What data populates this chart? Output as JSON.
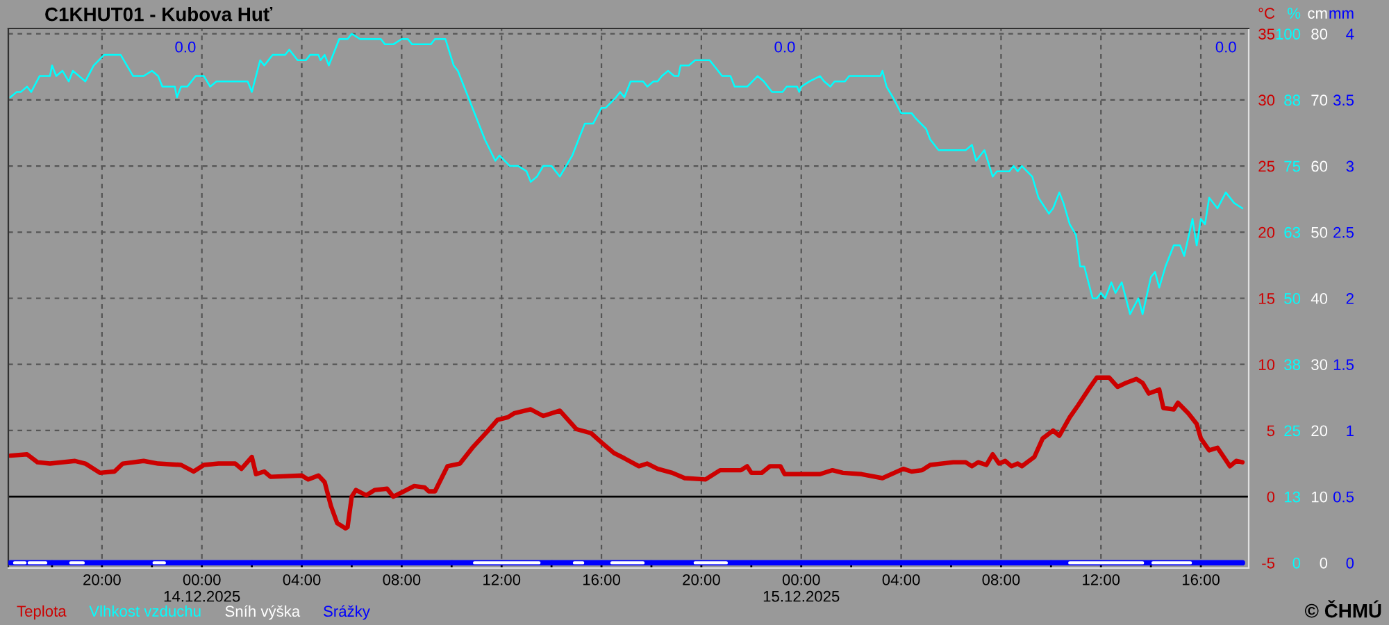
{
  "chart_data": [
    {
      "type": "line",
      "title": "C1KHUT01 - Kubova Huť",
      "ylabel": "°C",
      "y2label": "%",
      "y3label": "cm",
      "xlim": [
        "2025-12-13T16:15",
        "2025-12-15T17:55"
      ],
      "xticks": [
        {
          "value": "2025-12-13T18:00",
          "label": null
        },
        {
          "value": "2025-12-13T20:00",
          "label": "20:00"
        },
        {
          "value": "2025-12-13T22:00",
          "label": null
        },
        {
          "value": "2025-12-14T00:00",
          "label": "00:00\n14.12.2025"
        },
        {
          "value": "2025-12-14T02:00",
          "label": null
        },
        {
          "value": "2025-12-14T04:00",
          "label": "04:00"
        },
        {
          "value": "2025-12-14T06:00",
          "label": null
        },
        {
          "value": "2025-12-14T08:00",
          "label": "08:00"
        },
        {
          "value": "2025-12-14T10:00",
          "label": null
        },
        {
          "value": "2025-12-14T12:00",
          "label": "12:00"
        },
        {
          "value": "2025-12-14T14:00",
          "label": null
        },
        {
          "value": "2025-12-14T16:00",
          "label": "16:00"
        },
        {
          "value": "2025-12-14T18:00",
          "label": null
        },
        {
          "value": "2025-12-14T20:00",
          "label": "20:00"
        },
        {
          "value": "2025-12-14T22:00",
          "label": null
        },
        {
          "value": "2025-12-15T00:00",
          "label": "00:00\n15.12.2025"
        },
        {
          "value": "2025-12-15T02:00",
          "label": null
        },
        {
          "value": "2025-12-15T04:00",
          "label": "04:00"
        },
        {
          "value": "2025-12-15T06:00",
          "label": null
        },
        {
          "value": "2025-12-15T08:00",
          "label": "08:00"
        },
        {
          "value": "2025-12-15T10:00",
          "label": null
        },
        {
          "value": "2025-12-15T12:00",
          "label": "12:00"
        },
        {
          "value": "2025-12-15T14:00",
          "label": null
        },
        {
          "value": "2025-12-15T16:00",
          "label": "16:00"
        }
      ],
      "ylim": [
        -5.4,
        35.4
      ],
      "yticks": [
        -5,
        0,
        5,
        10,
        15,
        20,
        25,
        30,
        35
      ],
      "y2lim": [
        -1,
        101
      ],
      "y2ticks": [
        0,
        {
          "value": 12.5,
          "label": "13"
        },
        25,
        {
          "value": 37.5,
          "label": "38"
        },
        50,
        {
          "value": 62.5,
          "label": "63"
        },
        75,
        {
          "value": 87.5,
          "label": "88"
        },
        100
      ],
      "y3lim": [
        -0.8,
        80.8
      ],
      "y3ticks": [
        0,
        10,
        20,
        30,
        40,
        50,
        60,
        70,
        80
      ],
      "grid": true,
      "legend": "bottom left",
      "ref_lines": [
        {
          "axis": "y",
          "value": 0,
          "color": "#000000",
          "line_style": "solid"
        }
      ],
      "series": [
        {
          "name": "Teplota",
          "axis": "y",
          "color": "#cc0000",
          "x": [
            "2025-12-13T16:20",
            "2025-12-13T17:00",
            "2025-12-13T17:25",
            "2025-12-13T17:55",
            "2025-12-13T18:55",
            "2025-12-13T19:20",
            "2025-12-13T19:55",
            "2025-12-13T20:30",
            "2025-12-13T20:50",
            "2025-12-13T21:40",
            "2025-12-13T22:15",
            "2025-12-13T23:10",
            "2025-12-13T23:40",
            "2025-12-14T00:05",
            "2025-12-14T00:40",
            "2025-12-14T01:20",
            "2025-12-14T01:35",
            "2025-12-14T02:00",
            "2025-12-14T02:10",
            "2025-12-14T02:30",
            "2025-12-14T02:45",
            "2025-12-14T04:00",
            "2025-12-14T04:15",
            "2025-12-14T04:40",
            "2025-12-14T04:55",
            "2025-12-14T05:10",
            "2025-12-14T05:25",
            "2025-12-14T05:45",
            "2025-12-14T05:50",
            "2025-12-14T06:00",
            "2025-12-14T06:10",
            "2025-12-14T06:35",
            "2025-12-14T06:55",
            "2025-12-14T07:25",
            "2025-12-14T07:40",
            "2025-12-14T08:05",
            "2025-12-14T08:30",
            "2025-12-14T08:55",
            "2025-12-14T09:05",
            "2025-12-14T09:20",
            "2025-12-14T09:50",
            "2025-12-14T10:20",
            "2025-12-14T10:50",
            "2025-12-14T11:25",
            "2025-12-14T11:50",
            "2025-12-14T12:15",
            "2025-12-14T12:30",
            "2025-12-14T13:10",
            "2025-12-14T13:40",
            "2025-12-14T14:20",
            "2025-12-14T15:00",
            "2025-12-14T15:35",
            "2025-12-14T16:00",
            "2025-12-14T16:30",
            "2025-12-14T16:55",
            "2025-12-14T17:30",
            "2025-12-14T17:50",
            "2025-12-14T18:15",
            "2025-12-14T18:50",
            "2025-12-14T19:20",
            "2025-12-14T20:10",
            "2025-12-14T20:45",
            "2025-12-14T21:35",
            "2025-12-14T21:50",
            "2025-12-14T22:00",
            "2025-12-14T22:25",
            "2025-12-14T22:45",
            "2025-12-14T23:10",
            "2025-12-14T23:20",
            "2025-12-15T00:05",
            "2025-12-15T00:45",
            "2025-12-15T01:15",
            "2025-12-15T01:40",
            "2025-12-15T02:25",
            "2025-12-15T03:15",
            "2025-12-15T04:05",
            "2025-12-15T04:25",
            "2025-12-15T04:50",
            "2025-12-15T05:10",
            "2025-12-15T06:05",
            "2025-12-15T06:35",
            "2025-12-15T06:50",
            "2025-12-15T07:05",
            "2025-12-15T07:25",
            "2025-12-15T07:40",
            "2025-12-15T07:55",
            "2025-12-15T08:10",
            "2025-12-15T08:25",
            "2025-12-15T08:40",
            "2025-12-15T08:50",
            "2025-12-15T09:20",
            "2025-12-15T09:40",
            "2025-12-15T10:05",
            "2025-12-15T10:20",
            "2025-12-15T10:45",
            "2025-12-15T11:05",
            "2025-12-15T11:30",
            "2025-12-15T11:50",
            "2025-12-15T12:20",
            "2025-12-15T12:40",
            "2025-12-15T13:00",
            "2025-12-15T13:25",
            "2025-12-15T13:40",
            "2025-12-15T13:55",
            "2025-12-15T14:20",
            "2025-12-15T14:30",
            "2025-12-15T14:55",
            "2025-12-15T15:05",
            "2025-12-15T15:30",
            "2025-12-15T15:50",
            "2025-12-15T16:00",
            "2025-12-15T16:20",
            "2025-12-15T16:40",
            "2025-12-15T16:55",
            "2025-12-15T17:10",
            "2025-12-15T17:25",
            "2025-12-15T17:40"
          ],
          "values": [
            3.1,
            3.2,
            2.6,
            2.5,
            2.7,
            2.5,
            1.8,
            1.9,
            2.5,
            2.7,
            2.5,
            2.4,
            1.9,
            2.4,
            2.5,
            2.5,
            2.1,
            3.0,
            1.7,
            1.9,
            1.5,
            1.6,
            1.3,
            1.6,
            1.1,
            -0.7,
            -2.0,
            -2.4,
            -2.3,
            0.0,
            0.5,
            0.1,
            0.5,
            0.6,
            0.0,
            0.4,
            0.8,
            0.7,
            0.4,
            0.4,
            2.3,
            2.5,
            3.7,
            4.9,
            5.8,
            6.0,
            6.3,
            6.6,
            6.1,
            6.5,
            5.1,
            4.8,
            4.1,
            3.3,
            2.9,
            2.3,
            2.5,
            2.1,
            1.8,
            1.4,
            1.3,
            2.0,
            2.0,
            2.3,
            1.8,
            1.8,
            2.3,
            2.3,
            1.7,
            1.7,
            1.7,
            2.0,
            1.8,
            1.7,
            1.4,
            2.1,
            1.9,
            2.0,
            2.4,
            2.6,
            2.6,
            2.3,
            2.6,
            2.4,
            3.2,
            2.5,
            2.7,
            2.3,
            2.5,
            2.3,
            3.0,
            4.4,
            5.0,
            4.6,
            6.0,
            6.9,
            8.1,
            9.0,
            9.0,
            8.3,
            8.6,
            8.9,
            8.6,
            7.8,
            8.1,
            6.7,
            6.6,
            7.1,
            6.3,
            5.5,
            4.4,
            3.5,
            3.7,
            3.0,
            2.3,
            2.7,
            2.6
          ]
        },
        {
          "name": "Vlhkost vzduchu",
          "axis": "y2",
          "color": "#00ffff",
          "x": [
            "2025-12-13T16:20",
            "2025-12-13T16:35",
            "2025-12-13T16:45",
            "2025-12-13T17:00",
            "2025-12-13T17:10",
            "2025-12-13T17:30",
            "2025-12-13T17:55",
            "2025-12-13T18:00",
            "2025-12-13T18:10",
            "2025-12-13T18:25",
            "2025-12-13T18:40",
            "2025-12-13T18:50",
            "2025-12-13T19:05",
            "2025-12-13T19:20",
            "2025-12-13T19:40",
            "2025-12-13T20:05",
            "2025-12-13T20:45",
            "2025-12-13T21:15",
            "2025-12-13T21:30",
            "2025-12-13T21:40",
            "2025-12-13T22:00",
            "2025-12-13T22:15",
            "2025-12-13T22:25",
            "2025-12-13T22:55",
            "2025-12-13T23:00",
            "2025-12-13T23:10",
            "2025-12-13T23:25",
            "2025-12-13T23:45",
            "2025-12-14T00:05",
            "2025-12-14T00:20",
            "2025-12-14T00:35",
            "2025-12-14T01:50",
            "2025-12-14T02:00",
            "2025-12-14T02:20",
            "2025-12-14T02:30",
            "2025-12-14T02:50",
            "2025-12-14T03:20",
            "2025-12-14T03:30",
            "2025-12-14T03:50",
            "2025-12-14T04:10",
            "2025-12-14T04:20",
            "2025-12-14T04:40",
            "2025-12-14T04:45",
            "2025-12-14T04:55",
            "2025-12-14T05:05",
            "2025-12-14T05:30",
            "2025-12-14T05:50",
            "2025-12-14T06:00",
            "2025-12-14T06:20",
            "2025-12-14T07:10",
            "2025-12-14T07:20",
            "2025-12-14T07:40",
            "2025-12-14T08:00",
            "2025-12-14T08:15",
            "2025-12-14T08:25",
            "2025-12-14T09:10",
            "2025-12-14T09:20",
            "2025-12-14T09:45",
            "2025-12-14T10:05",
            "2025-12-14T10:15",
            "2025-12-14T10:50",
            "2025-12-14T11:20",
            "2025-12-14T11:45",
            "2025-12-14T11:55",
            "2025-12-14T12:20",
            "2025-12-14T12:40",
            "2025-12-14T13:00",
            "2025-12-14T13:10",
            "2025-12-14T13:25",
            "2025-12-14T13:40",
            "2025-12-14T14:00",
            "2025-12-14T14:10",
            "2025-12-14T14:20",
            "2025-12-14T14:50",
            "2025-12-14T15:20",
            "2025-12-14T15:40",
            "2025-12-14T16:00",
            "2025-12-14T16:10",
            "2025-12-14T16:35",
            "2025-12-14T16:45",
            "2025-12-14T16:55",
            "2025-12-14T17:10",
            "2025-12-14T17:40",
            "2025-12-14T17:50",
            "2025-12-14T18:05",
            "2025-12-14T18:15",
            "2025-12-14T18:25",
            "2025-12-14T18:40",
            "2025-12-14T18:55",
            "2025-12-14T19:05",
            "2025-12-14T19:10",
            "2025-12-14T19:30",
            "2025-12-14T19:45",
            "2025-12-14T20:20",
            "2025-12-14T20:50",
            "2025-12-14T21:10",
            "2025-12-14T21:20",
            "2025-12-14T21:50",
            "2025-12-14T22:15",
            "2025-12-14T22:30",
            "2025-12-14T22:50",
            "2025-12-14T23:15",
            "2025-12-14T23:25",
            "2025-12-14T23:50",
            "2025-12-14T23:55",
            "2025-12-15T00:00",
            "2025-12-15T00:20",
            "2025-12-15T00:45",
            "2025-12-15T00:55",
            "2025-12-15T01:10",
            "2025-12-15T01:20",
            "2025-12-15T01:45",
            "2025-12-15T01:55",
            "2025-12-15T03:10",
            "2025-12-15T03:15",
            "2025-12-15T03:25",
            "2025-12-15T03:40",
            "2025-12-15T04:00",
            "2025-12-15T04:25",
            "2025-12-15T04:35",
            "2025-12-15T05:00",
            "2025-12-15T05:10",
            "2025-12-15T05:30",
            "2025-12-15T06:35",
            "2025-12-15T06:50",
            "2025-12-15T07:00",
            "2025-12-15T07:20",
            "2025-12-15T07:40",
            "2025-12-15T07:50",
            "2025-12-15T08:20",
            "2025-12-15T08:30",
            "2025-12-15T08:40",
            "2025-12-15T08:50",
            "2025-12-15T09:15",
            "2025-12-15T09:30",
            "2025-12-15T09:55",
            "2025-12-15T10:05",
            "2025-12-15T10:20",
            "2025-12-15T10:30",
            "2025-12-15T10:45",
            "2025-12-15T11:00",
            "2025-12-15T11:10",
            "2025-12-15T11:20",
            "2025-12-15T11:40",
            "2025-12-15T11:50",
            "2025-12-15T12:00",
            "2025-12-15T12:10",
            "2025-12-15T12:25",
            "2025-12-15T12:35",
            "2025-12-15T12:50",
            "2025-12-15T13:10",
            "2025-12-15T13:30",
            "2025-12-15T13:40",
            "2025-12-15T14:00",
            "2025-12-15T14:10",
            "2025-12-15T14:20",
            "2025-12-15T14:35",
            "2025-12-15T14:55",
            "2025-12-15T15:10",
            "2025-12-15T15:20",
            "2025-12-15T15:40",
            "2025-12-15T15:50",
            "2025-12-15T16:00",
            "2025-12-15T16:10",
            "2025-12-15T16:20",
            "2025-12-15T16:40",
            "2025-12-15T17:00",
            "2025-12-15T17:20",
            "2025-12-15T17:40"
          ],
          "values": [
            88,
            89,
            89,
            90,
            89,
            92,
            92,
            94,
            92,
            93,
            91,
            93,
            92,
            91,
            94,
            96,
            96,
            92,
            92,
            92,
            93,
            92,
            90,
            90,
            88,
            90,
            90,
            92,
            92,
            90,
            91,
            91,
            89,
            95,
            94,
            96,
            96,
            97,
            95,
            95,
            96,
            96,
            95,
            96,
            94,
            99,
            99,
            100,
            99,
            99,
            98,
            98,
            99,
            99,
            98,
            98,
            99,
            99,
            94,
            93,
            86,
            80,
            76,
            77,
            75,
            75,
            74,
            72,
            73,
            75,
            75,
            74,
            73,
            77,
            83,
            83,
            86,
            86,
            88,
            89,
            88,
            91,
            91,
            90,
            91,
            91,
            92,
            93,
            92,
            92,
            94,
            94,
            95,
            95,
            92,
            92,
            90,
            90,
            92,
            91,
            89,
            89,
            90,
            90,
            89,
            90,
            91,
            92,
            91,
            90,
            91,
            91,
            92,
            92,
            93,
            90,
            88,
            85,
            85,
            84,
            82,
            80,
            78,
            78,
            79,
            76,
            78,
            73,
            74,
            74,
            75,
            74,
            75,
            73,
            69,
            66,
            67,
            70,
            68,
            64,
            62,
            56,
            56,
            50,
            50,
            51,
            50,
            53,
            51,
            53,
            47,
            50,
            47,
            54,
            55,
            52,
            56,
            60,
            60,
            58,
            65,
            60,
            65,
            64,
            69,
            67,
            70,
            68,
            67
          ]
        },
        {
          "name": "Sníh výška",
          "axis": "y3",
          "color": "#ffffff",
          "x": [
            "2025-12-13T16:30",
            "2025-12-13T16:55",
            "2025-12-13T17:00",
            "2025-12-13T17:05",
            "2025-12-13T17:45",
            "2025-12-13T18:15",
            "2025-12-13T18:45",
            "2025-12-13T19:15",
            "2025-12-13T20:00",
            "2025-12-13T22:05",
            "2025-12-13T22:30",
            "2025-12-14T05:00",
            "2025-12-14T10:55",
            "2025-12-14T13:30",
            "2025-12-14T14:10",
            "2025-12-14T14:55",
            "2025-12-14T15:15",
            "2025-12-14T15:50",
            "2025-12-14T16:25",
            "2025-12-14T17:40",
            "2025-12-14T18:40",
            "2025-12-14T19:45",
            "2025-12-14T21:00",
            "2025-12-15T05:00",
            "2025-12-15T10:45",
            "2025-12-15T13:40",
            "2025-12-15T13:52",
            "2025-12-15T14:05",
            "2025-12-15T15:35"
          ],
          "values": [
            0,
            0,
            null,
            0,
            0,
            null,
            0,
            0,
            null,
            0,
            0,
            null,
            0,
            0,
            null,
            0,
            0,
            null,
            0,
            0,
            null,
            0,
            0,
            null,
            0,
            0,
            null,
            0,
            0
          ]
        }
      ]
    },
    {
      "type": "line",
      "ylabel": "mm",
      "xlim": [
        "2025-12-13T16:15",
        "2025-12-15T17:55"
      ],
      "ylim": [
        -0.04,
        4.04
      ],
      "yticks": [
        0,
        0.5,
        1,
        1.5,
        2,
        2.5,
        3,
        3.5,
        4
      ],
      "tick_labels": "y",
      "legend": "bottom left",
      "annotations": [
        "0.0",
        "0.0",
        "0.0",
        "© ČHMÚ"
      ],
      "series": [
        {
          "name": "Srážky",
          "color": "#0000ff",
          "x": [
            "2025-12-13T16:20",
            "2025-12-15T17:40"
          ],
          "values": [
            0,
            0
          ]
        }
      ]
    }
  ]
}
